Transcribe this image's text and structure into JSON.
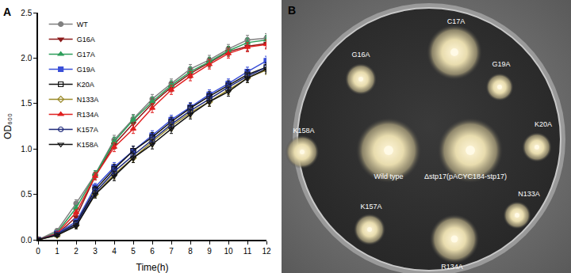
{
  "chart_data": {
    "type": "line",
    "panel_label": "A",
    "x_label": "Time(h)",
    "y_label": "OD₆₀₀",
    "x": [
      0,
      1,
      2,
      3,
      4,
      5,
      6,
      7,
      8,
      9,
      10,
      11,
      12
    ],
    "xlim": [
      0,
      12
    ],
    "xticks": [
      0,
      1,
      2,
      3,
      4,
      5,
      6,
      7,
      8,
      9,
      10,
      11,
      12
    ],
    "ylim": [
      0,
      2.5
    ],
    "yticks": [
      {
        "value": 0,
        "label": "0.0"
      },
      0.5,
      {
        "value": 1,
        "label": "1.0"
      },
      1.5,
      {
        "value": 2,
        "label": "2.0"
      },
      2.5
    ],
    "legend": "upper left",
    "grid": false,
    "series": [
      {
        "name": "WT",
        "color": "#808080",
        "marker": "circle",
        "values": [
          0,
          0.1,
          0.4,
          0.72,
          1.1,
          1.33,
          1.55,
          1.72,
          1.88,
          1.98,
          2.1,
          2.2,
          2.22
        ],
        "errors": [
          0.01,
          0.02,
          0.04,
          0.04,
          0.05,
          0.05,
          0.05,
          0.05,
          0.05,
          0.05,
          0.05,
          0.05,
          0.05
        ]
      },
      {
        "name": "G16A",
        "color": "#8b1a1a",
        "marker": "triangle-down",
        "values": [
          0,
          0.06,
          0.25,
          0.7,
          1.05,
          1.28,
          1.5,
          1.68,
          1.83,
          1.95,
          2.07,
          2.13,
          2.16
        ],
        "errors": [
          0.01,
          0.02,
          0.03,
          0.04,
          0.05,
          0.05,
          0.05,
          0.05,
          0.05,
          0.05,
          0.05,
          0.05,
          0.05
        ]
      },
      {
        "name": "G17A",
        "color": "#2e9e5b",
        "marker": "triangle-up",
        "values": [
          0,
          0.08,
          0.35,
          0.72,
          1.08,
          1.32,
          1.52,
          1.7,
          1.85,
          1.96,
          2.08,
          2.17,
          2.2
        ],
        "errors": [
          0.01,
          0.02,
          0.03,
          0.04,
          0.05,
          0.05,
          0.05,
          0.05,
          0.05,
          0.05,
          0.05,
          0.05,
          0.05
        ]
      },
      {
        "name": "G19A",
        "color": "#3a4fd8",
        "marker": "square",
        "values": [
          0,
          0.07,
          0.2,
          0.58,
          0.8,
          0.98,
          1.15,
          1.32,
          1.46,
          1.6,
          1.72,
          1.85,
          1.97
        ],
        "errors": [
          0.01,
          0.02,
          0.03,
          0.04,
          0.05,
          0.05,
          0.05,
          0.05,
          0.05,
          0.05,
          0.05,
          0.05,
          0.05
        ]
      },
      {
        "name": "K20A",
        "color": "#111111",
        "marker": "square-open",
        "values": [
          0,
          0.06,
          0.18,
          0.55,
          0.78,
          0.98,
          1.13,
          1.3,
          1.45,
          1.58,
          1.7,
          1.82,
          1.9
        ],
        "errors": [
          0.01,
          0.02,
          0.03,
          0.04,
          0.05,
          0.05,
          0.05,
          0.05,
          0.05,
          0.05,
          0.05,
          0.05,
          0.05
        ]
      },
      {
        "name": "N133A",
        "color": "#9a8a2a",
        "marker": "diamond-open",
        "values": [
          0,
          0.05,
          0.16,
          0.5,
          0.72,
          0.9,
          1.08,
          1.25,
          1.4,
          1.52,
          1.65,
          1.78,
          1.87
        ],
        "errors": [
          0.01,
          0.02,
          0.03,
          0.04,
          0.05,
          0.05,
          0.05,
          0.05,
          0.05,
          0.05,
          0.05,
          0.05,
          0.05
        ]
      },
      {
        "name": "R134A",
        "color": "#e02020",
        "marker": "triangle-up",
        "values": [
          0,
          0.07,
          0.3,
          0.7,
          1.02,
          1.22,
          1.45,
          1.65,
          1.8,
          1.93,
          2.05,
          2.12,
          2.15
        ],
        "errors": [
          0.01,
          0.02,
          0.03,
          0.04,
          0.05,
          0.05,
          0.05,
          0.05,
          0.05,
          0.05,
          0.05,
          0.05,
          0.05
        ]
      },
      {
        "name": "K157A",
        "color": "#1f2a7a",
        "marker": "circle-open",
        "values": [
          0,
          0.06,
          0.17,
          0.52,
          0.75,
          0.93,
          1.1,
          1.27,
          1.42,
          1.55,
          1.68,
          1.8,
          1.9
        ],
        "errors": [
          0.01,
          0.02,
          0.03,
          0.04,
          0.05,
          0.05,
          0.05,
          0.05,
          0.05,
          0.05,
          0.05,
          0.05,
          0.05
        ]
      },
      {
        "name": "K158A",
        "color": "#111111",
        "marker": "triangle-down-open",
        "values": [
          0,
          0.05,
          0.15,
          0.5,
          0.7,
          0.9,
          1.05,
          1.22,
          1.38,
          1.52,
          1.63,
          1.78,
          1.88
        ],
        "errors": [
          0.01,
          0.02,
          0.03,
          0.04,
          0.05,
          0.05,
          0.05,
          0.05,
          0.05,
          0.05,
          0.05,
          0.05,
          0.05
        ]
      }
    ]
  },
  "photo": {
    "panel_label": "B",
    "colonies": [
      "C17A",
      "G16A",
      "G19A",
      "K158A",
      "Wild type",
      "Δstp17(pACYC184-stp17)",
      "K20A",
      "N133A",
      "K157A",
      "R134A"
    ]
  }
}
